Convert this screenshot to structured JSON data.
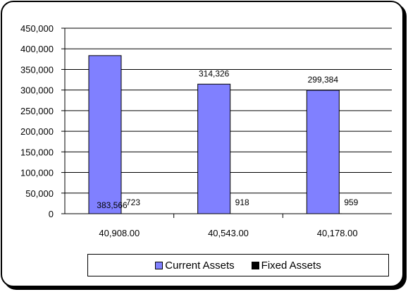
{
  "chart_data": {
    "type": "bar",
    "categories": [
      "40,908.00",
      "40,543.00",
      "40,178.00"
    ],
    "series": [
      {
        "name": "Current Assets",
        "values": [
          383566,
          314326,
          299384
        ],
        "labels": [
          "383,566",
          "314,326",
          "299,384"
        ],
        "color": "#8080ff"
      },
      {
        "name": "Fixed Assets",
        "values": [
          723,
          918,
          959
        ],
        "labels": [
          "723",
          "918",
          "959"
        ],
        "color": "#000000"
      }
    ],
    "ylim": [
      0,
      450000
    ],
    "yticks": [
      "0",
      "50,000",
      "100,000",
      "150,000",
      "200,000",
      "250,000",
      "300,000",
      "350,000",
      "400,000",
      "450,000"
    ],
    "grid": true,
    "legend_position": "bottom"
  }
}
